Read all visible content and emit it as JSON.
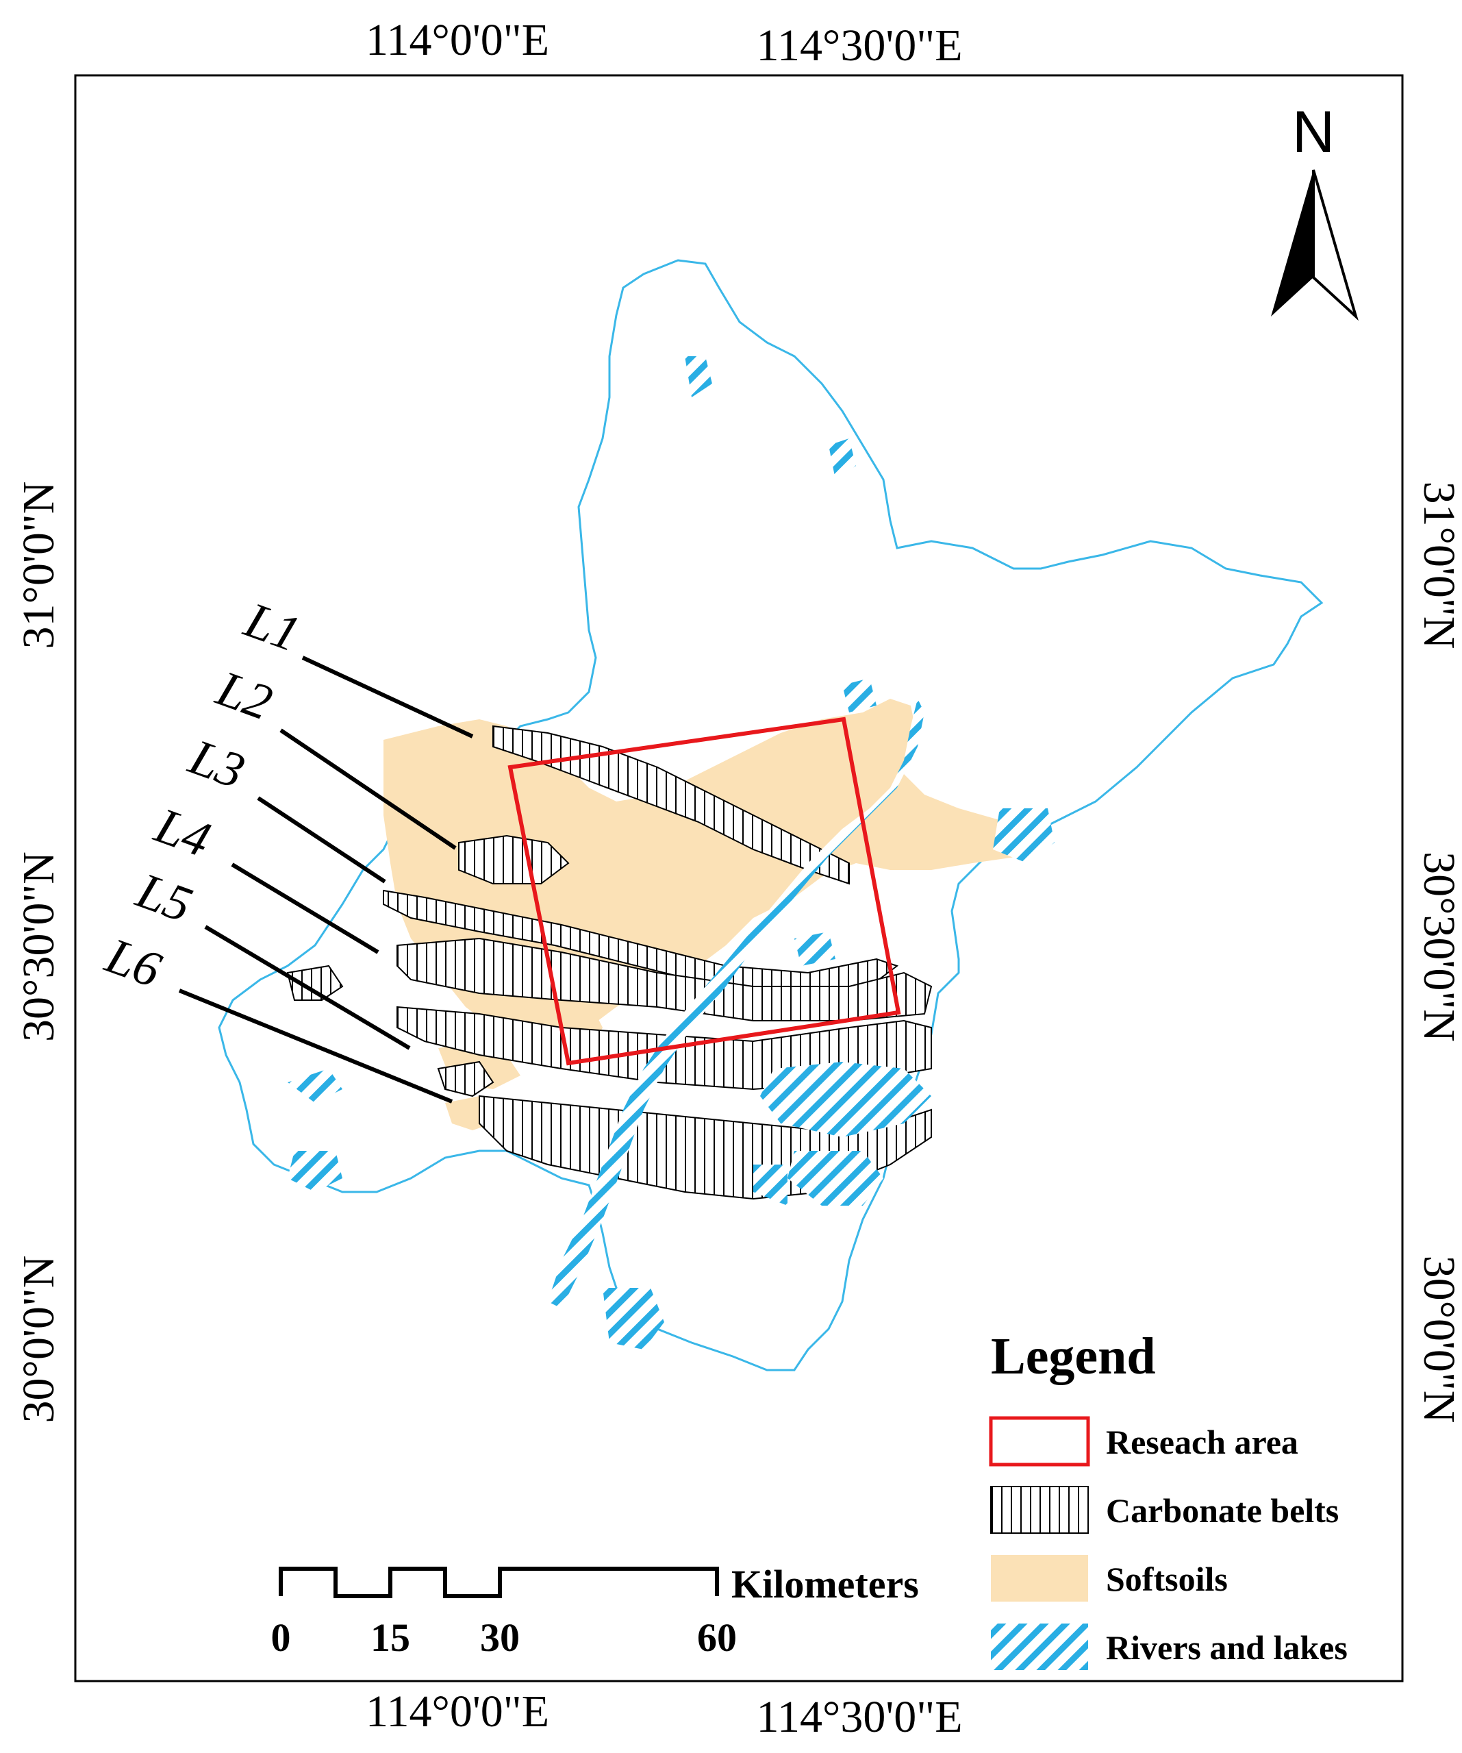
{
  "map": {
    "graticule": {
      "top": [
        "114°0'0\"E",
        "114°30'0\"E"
      ],
      "bottom": [
        "114°0'0\"E",
        "114°30'0\"E"
      ],
      "left": [
        "31°0'0\"N",
        "30°30'0\"N",
        "30°0'0\"N"
      ],
      "right": [
        "31°0'0\"N",
        "30°30'0\"N",
        "30°0'0\"N"
      ]
    },
    "north_arrow": {
      "label": "N"
    },
    "line_labels": [
      "L1",
      "L2",
      "L3",
      "L4",
      "L5",
      "L6"
    ],
    "legend": {
      "title": "Legend",
      "items": [
        {
          "label": "Reseach area",
          "symbol": "red-outline",
          "color": "#e8181c"
        },
        {
          "label": "Carbonate belts",
          "symbol": "vertical-hatch",
          "color": "#000000"
        },
        {
          "label": "Softsoils",
          "symbol": "fill",
          "color": "#fbe1b6"
        },
        {
          "label": "Rivers and lakes",
          "symbol": "diagonal-hatch",
          "color": "#29aee4"
        }
      ]
    },
    "scale_bar": {
      "unit": "Kilometers",
      "ticks": [
        "0",
        "15",
        "30",
        "60"
      ]
    },
    "colors": {
      "boundary": "#3ab7e8",
      "water": "#29aee4",
      "softsoil": "#fbe1b6",
      "research": "#e8181c"
    }
  }
}
